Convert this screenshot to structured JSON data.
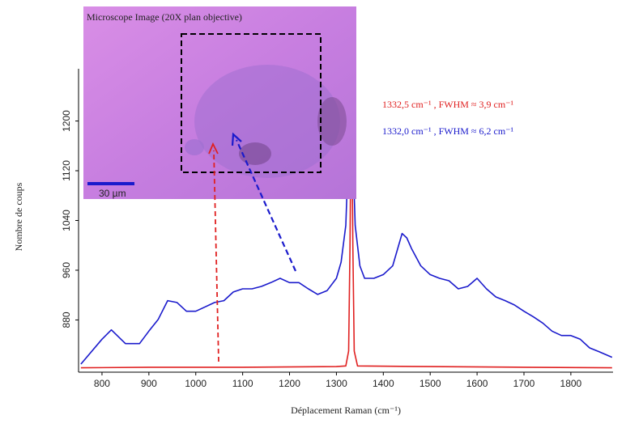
{
  "chart_data": {
    "type": "line",
    "x_label": "Déplacement Raman (cm⁻¹)",
    "y_label": "Nombre de coups",
    "inset_caption": "Microscope Image  (20X  plan objective)",
    "scale_bar_label": "30 µm",
    "xlim": [
      750,
      1890
    ],
    "ylim": [
      796,
      1284
    ],
    "xticks": [
      800,
      900,
      1000,
      1100,
      1200,
      1300,
      1400,
      1500,
      1600,
      1700,
      1800
    ],
    "yticks": [
      880,
      960,
      1040,
      1120,
      1200
    ],
    "series": [
      {
        "name": "1332,5 cm⁻¹ , FWHM ≈ 3,9 cm⁻¹",
        "color": "#e02020",
        "x": [
          755,
          900,
          1100,
          1300,
          1320,
          1326,
          1329,
          1332,
          1335,
          1338,
          1345,
          1500,
          1700,
          1888
        ],
        "values": [
          803,
          804,
          804,
          805,
          806,
          830,
          1000,
          1278,
          1000,
          830,
          806,
          805,
          804,
          803
        ]
      },
      {
        "name": "1332,0 cm⁻¹ , FWHM ≈ 6,2 cm⁻¹",
        "color": "#1a1acc",
        "x": [
          755,
          800,
          820,
          850,
          880,
          900,
          920,
          940,
          960,
          980,
          1000,
          1020,
          1040,
          1060,
          1080,
          1100,
          1120,
          1140,
          1160,
          1180,
          1200,
          1220,
          1240,
          1260,
          1280,
          1300,
          1310,
          1320,
          1325,
          1330,
          1335,
          1340,
          1350,
          1360,
          1380,
          1400,
          1420,
          1440,
          1450,
          1460,
          1480,
          1500,
          1520,
          1540,
          1560,
          1580,
          1600,
          1620,
          1640,
          1660,
          1680,
          1700,
          1720,
          1740,
          1760,
          1780,
          1800,
          1820,
          1840,
          1860,
          1888
        ],
        "values": [
          809,
          849,
          864,
          842,
          842,
          862,
          881,
          911,
          908,
          894,
          894,
          901,
          908,
          911,
          925,
          930,
          930,
          934,
          940,
          947,
          940,
          940,
          930,
          921,
          927,
          947,
          973,
          1032,
          1137,
          1200,
          1150,
          1032,
          967,
          947,
          947,
          953,
          967,
          1019,
          1012,
          995,
          967,
          953,
          947,
          943,
          930,
          934,
          947,
          930,
          917,
          911,
          904,
          894,
          885,
          875,
          862,
          855,
          855,
          849,
          835,
          829,
          820
        ]
      }
    ]
  }
}
